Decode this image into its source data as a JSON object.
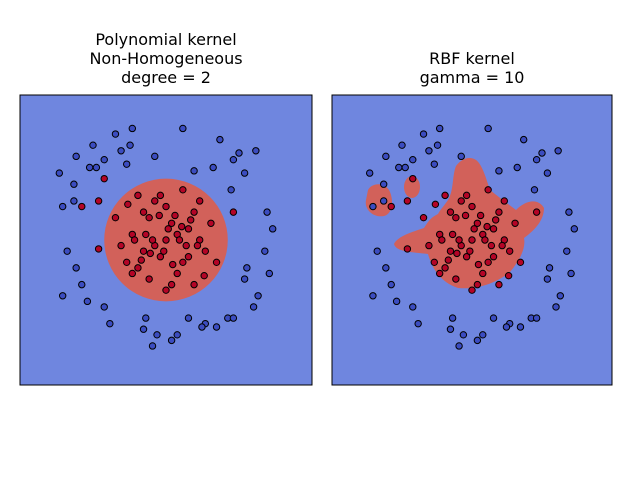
{
  "colors": {
    "background_region": "#6f86df",
    "inner_region": "#d2615a",
    "class_outer": "#3b4cc0",
    "class_inner": "#b40426",
    "point_edge": "#000000",
    "frame": "#000000"
  },
  "chart_data": [
    {
      "type": "scatter",
      "title_lines": [
        "Polynomial kernel",
        "Non-Homogeneous",
        "degree = 2"
      ],
      "xlim": [
        -1.3,
        1.3
      ],
      "ylim": [
        -1.3,
        1.3
      ],
      "axes_visible": false,
      "grid": false,
      "decision_region": {
        "shape": "circle",
        "center": [
          0.0,
          0.0
        ],
        "radius": 0.55
      },
      "series": [
        {
          "class": "outer",
          "x": [
            -0.95,
            -0.8,
            -0.65,
            -0.45,
            -0.4,
            0.15,
            0.48,
            0.42,
            0.6,
            0.9,
            0.95,
            0.92,
            0.78,
            0.55,
            0.35,
            0.1,
            -0.2,
            -0.55,
            -0.75,
            -0.88,
            -0.82,
            -0.62,
            -0.32,
            -0.1,
            0.25,
            0.58,
            0.7,
            0.82,
            -0.92,
            -0.7,
            -0.5,
            -0.18,
            0.32,
            0.65,
            0.72,
            -0.55,
            -0.8,
            -0.68,
            0.45,
            -0.12,
            0.05,
            0.2,
            -0.35,
            0.88,
            -0.92,
            -0.82,
            0.6,
            0.8,
            0.7,
            -0.3,
            -0.08
          ],
          "y": [
            0.6,
            0.75,
            0.85,
            0.95,
            0.8,
            1.0,
            0.9,
            0.65,
            0.72,
            0.25,
            0.1,
            -0.3,
            -0.6,
            -0.7,
            -0.75,
            -0.85,
            -0.8,
            -0.6,
            -0.4,
            -0.1,
            0.35,
            0.65,
            0.85,
            0.75,
            0.62,
            0.45,
            -0.35,
            -0.5,
            -0.5,
            -0.55,
            -0.75,
            -0.7,
            -0.78,
            0.78,
            -0.25,
            0.72,
            -0.25,
            0.65,
            -0.78,
            -0.95,
            -0.9,
            -0.7,
            0.68,
            -0.1,
            0.3,
            0.5,
            -0.7,
            0.8,
            0.6,
            1.0,
            -0.85
          ]
        }
      ],
      "series_inner": [
        {
          "class": "inner",
          "x": [
            0.0,
            0.1,
            -0.1,
            0.05,
            -0.05,
            0.2,
            -0.2,
            0.15,
            -0.15,
            0.3,
            -0.3,
            0.25,
            -0.25,
            0.35,
            -0.35,
            0.0,
            0.1,
            -0.1,
            0.4,
            -0.4,
            0.05,
            -0.05,
            0.15,
            -0.15,
            0.2,
            -0.2,
            0.3,
            -0.3,
            0.0,
            0.45,
            -0.45,
            0.25,
            -0.25,
            0.12,
            -0.12,
            0.02,
            -0.02,
            0.18,
            -0.18,
            0.08,
            0.22,
            -0.22,
            0.34,
            -0.34,
            0.06,
            -0.06,
            -0.6,
            -0.55,
            -0.75,
            -0.6,
            0.6,
            -0.28,
            0.28,
            0.14,
            -0.14
          ],
          "y": [
            0.0,
            0.05,
            -0.05,
            0.15,
            -0.15,
            0.1,
            -0.1,
            -0.2,
            0.2,
            0.0,
            0.05,
            0.25,
            -0.25,
            -0.1,
            -0.2,
            0.3,
            -0.3,
            0.35,
            0.15,
            -0.05,
            -0.4,
            0.4,
            0.45,
            -0.35,
            -0.15,
            0.25,
            0.35,
            -0.3,
            -0.45,
            -0.2,
            0.2,
            -0.4,
            0.4,
            0.0,
            0.0,
            0.1,
            -0.1,
            -0.05,
            0.05,
            0.22,
            0.18,
            -0.18,
            -0.32,
            0.32,
            -0.22,
            0.22,
            0.35,
            0.55,
            0.3,
            -0.08,
            0.25,
            0.0,
            -0.05,
            0.12,
            -0.12
          ]
        }
      ]
    },
    {
      "type": "scatter",
      "title_lines": [
        "RBF kernel",
        "gamma = 10"
      ],
      "xlim": [
        -1.3,
        1.3
      ],
      "ylim": [
        -1.3,
        1.3
      ],
      "axes_visible": false,
      "grid": false,
      "decision_region": {
        "shape": "irregular"
      },
      "shares_points_with": 0
    }
  ]
}
